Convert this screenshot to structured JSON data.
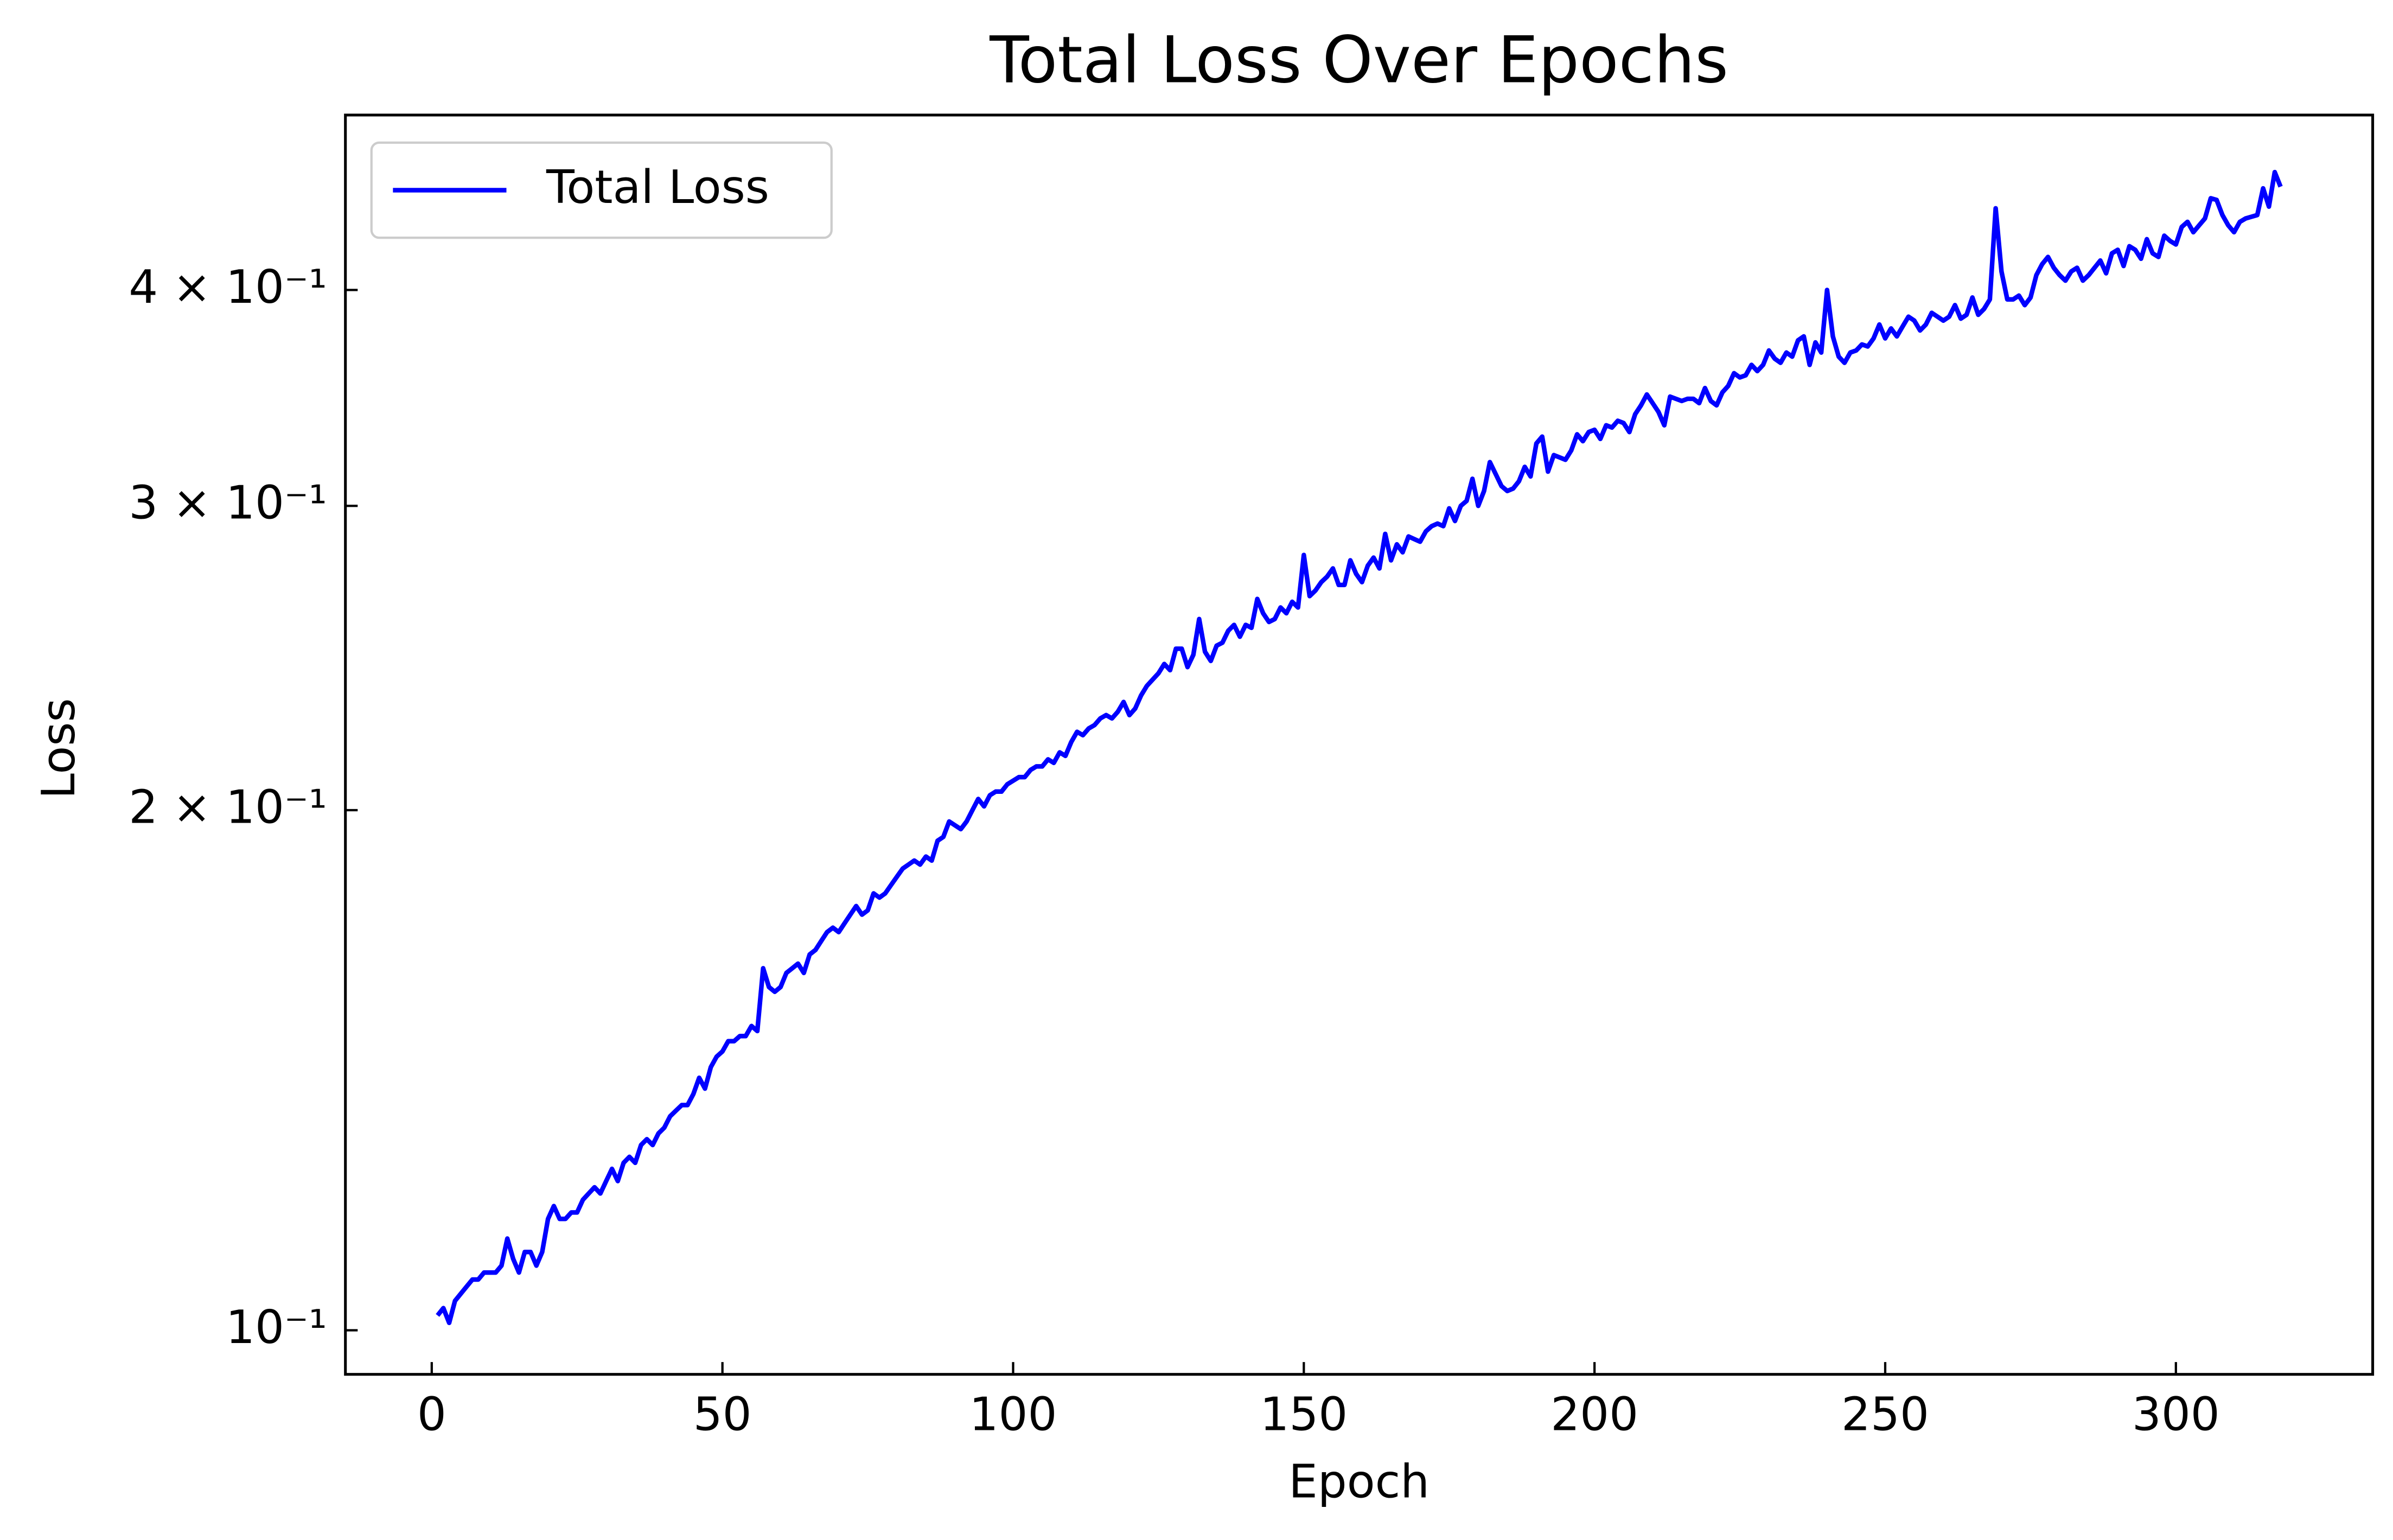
{
  "chart_data": {
    "type": "line",
    "title": "Total Loss Over Epochs",
    "x_label": "Epoch",
    "y_label": "Loss",
    "log_y": true,
    "legend": "upper left",
    "xlim": [
      -14.85,
      333.85
    ],
    "xticks": [
      0,
      50,
      100,
      150,
      200,
      250,
      300
    ],
    "ylim": [
      0.0943,
      0.505
    ],
    "yticks": [
      {
        "value": 0.1,
        "label": "10⁻¹"
      },
      {
        "value": 0.2,
        "label": "2 × 10⁻¹"
      },
      {
        "value": 0.3,
        "label": "3 × 10⁻¹"
      },
      {
        "value": 0.4,
        "label": "4 × 10⁻¹"
      }
    ],
    "x": [
      1,
      2,
      3,
      4,
      5,
      6,
      7,
      8,
      9,
      10,
      11,
      12,
      13,
      14,
      15,
      16,
      17,
      18,
      19,
      20,
      21,
      22,
      23,
      24,
      25,
      26,
      27,
      28,
      29,
      30,
      31,
      32,
      33,
      34,
      35,
      36,
      37,
      38,
      39,
      40,
      41,
      42,
      43,
      44,
      45,
      46,
      47,
      48,
      49,
      50,
      51,
      52,
      53,
      54,
      55,
      56,
      57,
      58,
      59,
      60,
      61,
      62,
      63,
      64,
      65,
      66,
      67,
      68,
      69,
      70,
      71,
      72,
      73,
      74,
      75,
      76,
      77,
      78,
      79,
      80,
      81,
      82,
      83,
      84,
      85,
      86,
      87,
      88,
      89,
      90,
      91,
      92,
      93,
      94,
      95,
      96,
      97,
      98,
      99,
      100,
      101,
      102,
      103,
      104,
      105,
      106,
      107,
      108,
      109,
      110,
      111,
      112,
      113,
      114,
      115,
      116,
      117,
      118,
      119,
      120,
      121,
      122,
      123,
      124,
      125,
      126,
      127,
      128,
      129,
      130,
      131,
      132,
      133,
      134,
      135,
      136,
      137,
      138,
      139,
      140,
      141,
      142,
      143,
      144,
      145,
      146,
      147,
      148,
      149,
      150,
      151,
      152,
      153,
      154,
      155,
      156,
      157,
      158,
      159,
      160,
      161,
      162,
      163,
      164,
      165,
      166,
      167,
      168,
      169,
      170,
      171,
      172,
      173,
      174,
      175,
      176,
      177,
      178,
      179,
      180,
      181,
      182,
      183,
      184,
      185,
      186,
      187,
      188,
      189,
      190,
      191,
      192,
      193,
      194,
      195,
      196,
      197,
      198,
      199,
      200,
      201,
      202,
      203,
      204,
      205,
      206,
      207,
      208,
      209,
      210,
      211,
      212,
      213,
      214,
      215,
      216,
      217,
      218,
      219,
      220,
      221,
      222,
      223,
      224,
      225,
      226,
      227,
      228,
      229,
      230,
      231,
      232,
      233,
      234,
      235,
      236,
      237,
      238,
      239,
      240,
      241,
      242,
      243,
      244,
      245,
      246,
      247,
      248,
      249,
      250,
      251,
      252,
      253,
      254,
      255,
      256,
      257,
      258,
      259,
      260,
      261,
      262,
      263,
      264,
      265,
      266,
      267,
      268,
      269,
      270,
      271,
      272,
      273,
      274,
      275,
      276,
      277,
      278,
      279,
      280,
      281,
      282,
      283,
      284,
      285,
      286,
      287,
      288,
      289,
      290,
      291,
      292,
      293,
      294,
      295,
      296,
      297,
      298,
      299,
      300,
      301,
      302,
      303,
      304,
      305,
      306,
      307,
      308,
      309,
      310,
      311,
      312,
      313,
      314,
      315,
      316,
      317,
      318
    ],
    "series": [
      {
        "name": "Total Loss",
        "color": "#0000ff",
        "values": [
          0.102,
          0.103,
          0.101,
          0.104,
          0.105,
          0.106,
          0.107,
          0.107,
          0.108,
          0.108,
          0.108,
          0.109,
          0.113,
          0.11,
          0.108,
          0.111,
          0.111,
          0.109,
          0.111,
          0.116,
          0.118,
          0.116,
          0.116,
          0.117,
          0.117,
          0.119,
          0.12,
          0.121,
          0.12,
          0.122,
          0.124,
          0.122,
          0.125,
          0.126,
          0.125,
          0.128,
          0.129,
          0.128,
          0.13,
          0.131,
          0.133,
          0.134,
          0.135,
          0.135,
          0.137,
          0.14,
          0.138,
          0.142,
          0.144,
          0.145,
          0.147,
          0.147,
          0.148,
          0.148,
          0.15,
          0.149,
          0.162,
          0.158,
          0.157,
          0.158,
          0.161,
          0.162,
          0.163,
          0.161,
          0.165,
          0.166,
          0.168,
          0.17,
          0.171,
          0.17,
          0.172,
          0.174,
          0.176,
          0.174,
          0.175,
          0.179,
          0.178,
          0.179,
          0.181,
          0.183,
          0.185,
          0.186,
          0.187,
          0.186,
          0.188,
          0.187,
          0.192,
          0.193,
          0.197,
          0.196,
          0.195,
          0.197,
          0.2,
          0.203,
          0.201,
          0.204,
          0.205,
          0.205,
          0.207,
          0.208,
          0.209,
          0.209,
          0.211,
          0.212,
          0.212,
          0.214,
          0.213,
          0.216,
          0.215,
          0.219,
          0.222,
          0.221,
          0.223,
          0.224,
          0.226,
          0.227,
          0.226,
          0.228,
          0.231,
          0.227,
          0.229,
          0.233,
          0.236,
          0.238,
          0.24,
          0.243,
          0.241,
          0.248,
          0.248,
          0.242,
          0.246,
          0.258,
          0.247,
          0.244,
          0.249,
          0.25,
          0.254,
          0.256,
          0.252,
          0.256,
          0.255,
          0.265,
          0.26,
          0.257,
          0.258,
          0.262,
          0.26,
          0.264,
          0.262,
          0.281,
          0.266,
          0.268,
          0.271,
          0.273,
          0.276,
          0.27,
          0.27,
          0.279,
          0.274,
          0.271,
          0.277,
          0.28,
          0.276,
          0.289,
          0.279,
          0.285,
          0.282,
          0.288,
          0.287,
          0.286,
          0.29,
          0.292,
          0.293,
          0.292,
          0.299,
          0.294,
          0.3,
          0.302,
          0.311,
          0.3,
          0.306,
          0.318,
          0.313,
          0.308,
          0.306,
          0.307,
          0.31,
          0.316,
          0.312,
          0.326,
          0.329,
          0.314,
          0.321,
          0.32,
          0.319,
          0.323,
          0.33,
          0.327,
          0.331,
          0.332,
          0.328,
          0.334,
          0.333,
          0.336,
          0.335,
          0.331,
          0.339,
          0.343,
          0.348,
          0.344,
          0.34,
          0.334,
          0.347,
          0.346,
          0.345,
          0.346,
          0.346,
          0.344,
          0.351,
          0.345,
          0.343,
          0.349,
          0.352,
          0.358,
          0.356,
          0.357,
          0.362,
          0.359,
          0.362,
          0.369,
          0.365,
          0.363,
          0.368,
          0.366,
          0.374,
          0.376,
          0.362,
          0.373,
          0.368,
          0.4,
          0.376,
          0.366,
          0.363,
          0.368,
          0.369,
          0.372,
          0.371,
          0.375,
          0.382,
          0.375,
          0.38,
          0.376,
          0.381,
          0.386,
          0.384,
          0.379,
          0.382,
          0.388,
          0.386,
          0.384,
          0.386,
          0.392,
          0.385,
          0.387,
          0.396,
          0.387,
          0.39,
          0.395,
          0.446,
          0.41,
          0.395,
          0.395,
          0.397,
          0.392,
          0.396,
          0.408,
          0.414,
          0.418,
          0.412,
          0.408,
          0.405,
          0.41,
          0.412,
          0.405,
          0.408,
          0.412,
          0.416,
          0.409,
          0.42,
          0.422,
          0.413,
          0.424,
          0.422,
          0.417,
          0.428,
          0.42,
          0.418,
          0.43,
          0.427,
          0.425,
          0.435,
          0.438,
          0.432,
          0.436,
          0.44,
          0.452,
          0.451,
          0.442,
          0.436,
          0.432,
          0.438,
          0.44,
          0.441,
          0.442,
          0.458,
          0.447,
          0.468,
          0.459
        ]
      }
    ]
  }
}
